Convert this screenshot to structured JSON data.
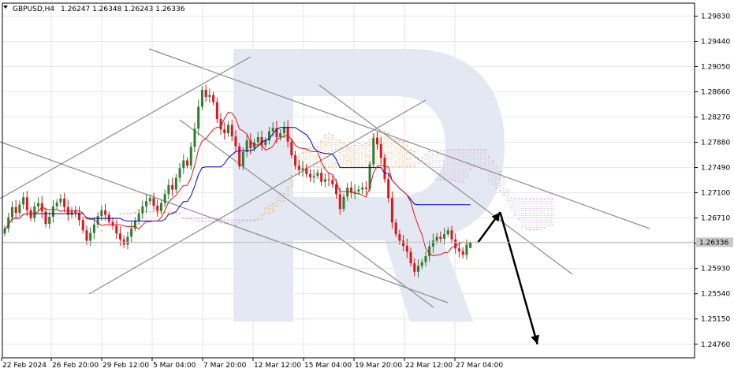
{
  "header": {
    "symbol": "GBPUSD,H4",
    "quote": "1.26247 1.26348 1.26243 1.26336"
  },
  "colors": {
    "background": "#ffffff",
    "grid": "#e6e6e6",
    "axis": "#000000",
    "bull_candle": "#2e7d32",
    "bear_candle": "#e0141b",
    "tenkan": "#e0141b",
    "kijun": "#0000c8",
    "kumo": "#f4a460",
    "kumo_bear": "#c8a0d8",
    "trendline": "#8c8c8c",
    "forecast_arrow": "#000000",
    "price_label_bg": "#c8c8c8",
    "watermark": "#e4e8f2"
  },
  "watermark_icon": "R-logo-watermark",
  "chart_data": {
    "type": "candlestick",
    "title": "GBPUSD,H4",
    "timeframe": "H4",
    "ohlc": {
      "open": 1.26247,
      "high": 1.26348,
      "low": 1.26243,
      "close": 1.26336
    },
    "current_price": 1.26336,
    "current_price_label": "1.26336",
    "ylim": [
      1.2455,
      1.3003
    ],
    "y_ticks": [
      "1.29830",
      "1.29440",
      "1.29050",
      "1.28660",
      "1.28270",
      "1.27880",
      "1.27490",
      "1.27100",
      "1.26710",
      "1.26320",
      "1.25930",
      "1.25540",
      "1.25150",
      "1.24760"
    ],
    "x_ticks": [
      "22 Feb 2024",
      "26 Feb 20:00",
      "29 Feb 12:00",
      "5 Mar 04:00",
      "7 Mar 20:00",
      "12 Mar 12:00",
      "15 Mar 04:00",
      "19 Mar 20:00",
      "22 Mar 12:00",
      "27 Mar 04:00"
    ],
    "grid": true,
    "closes": [
      1.2655,
      1.2672,
      1.2688,
      1.2679,
      1.2692,
      1.2703,
      1.2683,
      1.2671,
      1.2689,
      1.2694,
      1.2681,
      1.2662,
      1.2673,
      1.2689,
      1.2695,
      1.2701,
      1.2688,
      1.2676,
      1.2682,
      1.2679,
      1.2668,
      1.2652,
      1.2636,
      1.2648,
      1.2661,
      1.2674,
      1.2683,
      1.2676,
      1.2665,
      1.2659,
      1.2647,
      1.2638,
      1.263,
      1.2642,
      1.2655,
      1.2667,
      1.2678,
      1.2689,
      1.2697,
      1.2702,
      1.269,
      1.2682,
      1.2694,
      1.2708,
      1.2722,
      1.2715,
      1.2733,
      1.2748,
      1.276,
      1.2752,
      1.2781,
      1.2809,
      1.2843,
      1.2869,
      1.2858,
      1.2861,
      1.285,
      1.2824,
      1.2808,
      1.2802,
      1.2815,
      1.2797,
      1.2782,
      1.2751,
      1.2773,
      1.2791,
      1.2779,
      1.2788,
      1.2796,
      1.2784,
      1.2791,
      1.2805,
      1.281,
      1.2796,
      1.2802,
      1.2812,
      1.2789,
      1.2768,
      1.2752,
      1.2745,
      1.2748,
      1.2739,
      1.2734,
      1.2736,
      1.2741,
      1.2727,
      1.2731,
      1.273,
      1.2723,
      1.2708,
      1.2685,
      1.2704,
      1.2718,
      1.271,
      1.2712,
      1.2715,
      1.2718,
      1.2716,
      1.2754,
      1.2795,
      1.2785,
      1.2764,
      1.2731,
      1.2702,
      1.2664,
      1.2646,
      1.2636,
      1.2628,
      1.2619,
      1.2601,
      1.2588,
      1.2597,
      1.2603,
      1.2612,
      1.2627,
      1.2636,
      1.2642,
      1.2639,
      1.2646,
      1.2652,
      1.2638,
      1.2624,
      1.262,
      1.2614,
      1.263,
      1.2634
    ]
  },
  "annotations": {
    "forecast_path": [
      {
        "bar": 127,
        "price": 1.2633
      },
      {
        "bar": 133,
        "price": 1.268
      },
      {
        "bar": 143,
        "price": 1.2476
      }
    ]
  }
}
